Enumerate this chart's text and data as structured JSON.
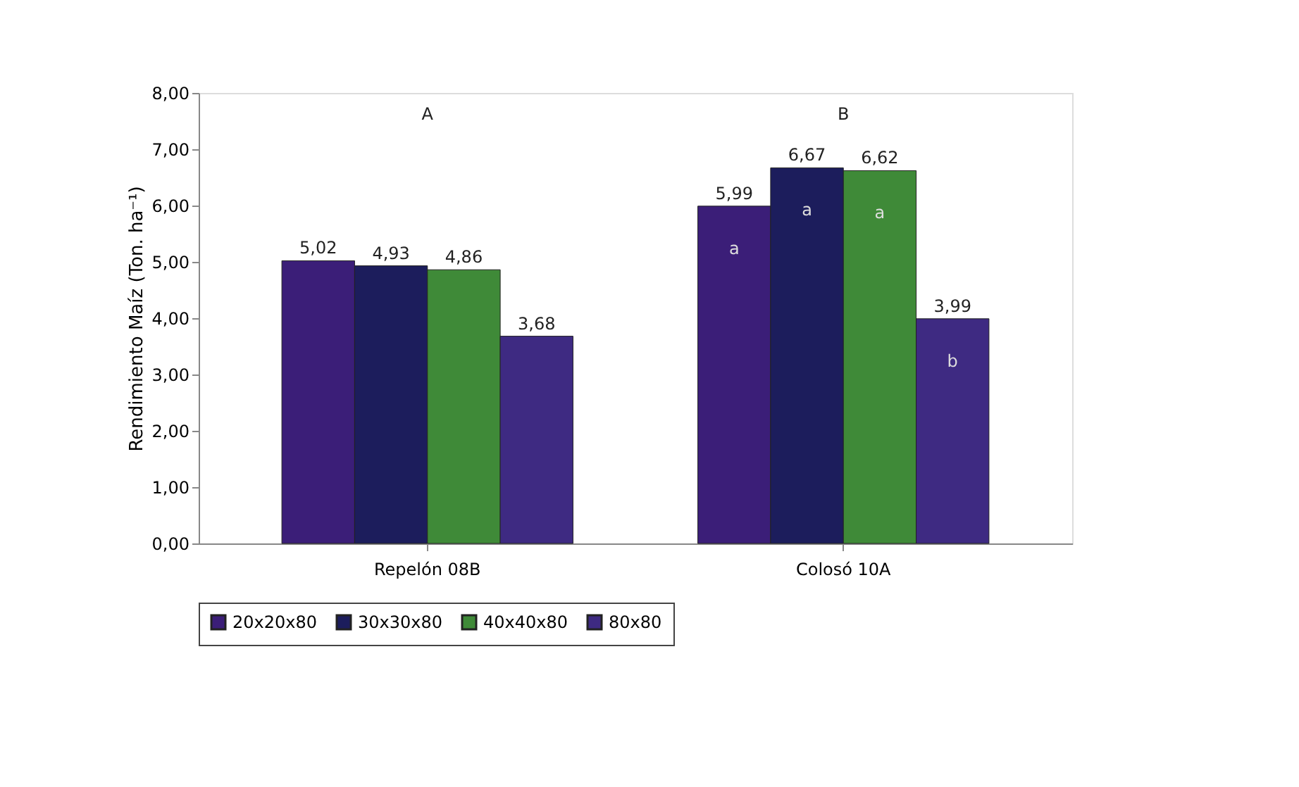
{
  "chart_data": {
    "type": "bar",
    "ylabel": "Rendimiento Maíz (Ton. ha⁻¹)",
    "categories": [
      "Repelón 08B",
      "Colosó 10A"
    ],
    "series": [
      {
        "name": "20x20x80",
        "color": "#3b1e78",
        "values": [
          5.02,
          5.99
        ],
        "value_labels": [
          "5,02",
          "5,99"
        ]
      },
      {
        "name": "30x30x80",
        "color": "#1c1d5c",
        "values": [
          4.93,
          6.67
        ],
        "value_labels": [
          "4,93",
          "6,67"
        ]
      },
      {
        "name": "40x40x80",
        "color": "#3f8a38",
        "values": [
          4.86,
          6.62
        ],
        "value_labels": [
          "4,86",
          "6,62"
        ]
      },
      {
        "name": "80x80",
        "color": "#3e2a82",
        "values": [
          3.68,
          3.99
        ],
        "value_labels": [
          "3,68",
          "3,99"
        ]
      }
    ],
    "ylim": [
      0,
      8
    ],
    "yticks": [
      {
        "value": 0,
        "label": "0,00"
      },
      {
        "value": 1,
        "label": "1,00"
      },
      {
        "value": 2,
        "label": "2,00"
      },
      {
        "value": 3,
        "label": "3,00"
      },
      {
        "value": 4,
        "label": "4,00"
      },
      {
        "value": 5,
        "label": "5,00"
      },
      {
        "value": 6,
        "label": "6,00"
      },
      {
        "value": 7,
        "label": "7,00"
      },
      {
        "value": 8,
        "label": "8,00"
      }
    ],
    "annotations": [
      "A",
      "B",
      "a",
      "a",
      "a",
      "b"
    ],
    "grid": false,
    "legend": "bottom"
  }
}
